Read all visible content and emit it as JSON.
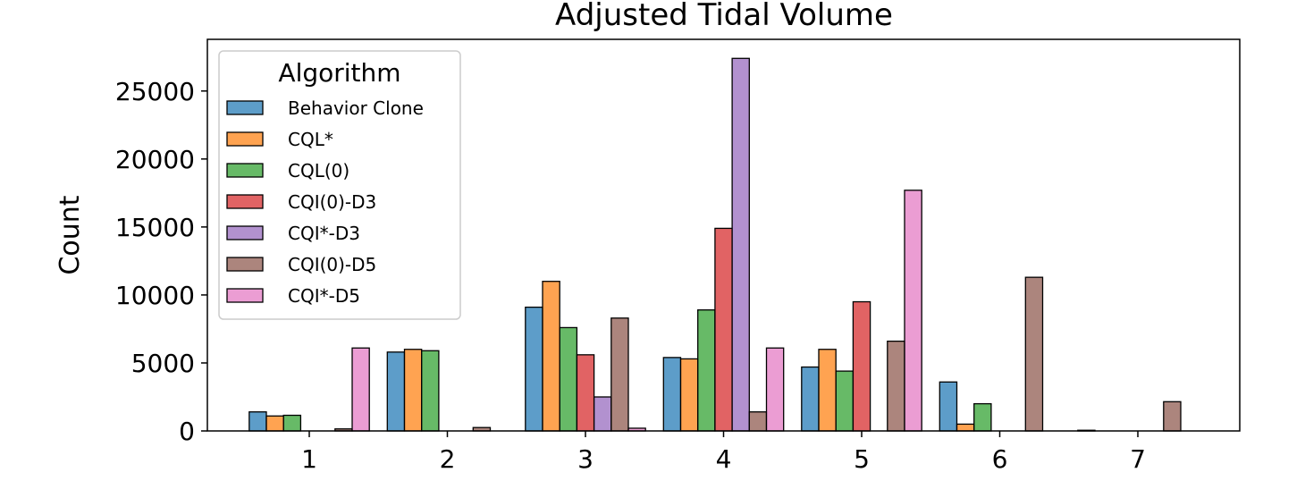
{
  "chart_data": {
    "type": "bar",
    "title": "Adjusted Tidal Volume",
    "xlabel": "",
    "ylabel": "Count",
    "categories": [
      "1",
      "2",
      "3",
      "4",
      "5",
      "6",
      "7"
    ],
    "ylim": [
      0,
      28800
    ],
    "yticks": [
      0,
      5000,
      10000,
      15000,
      20000,
      25000
    ],
    "ytick_labels": [
      "0",
      "5000",
      "10000",
      "15000",
      "20000",
      "25000"
    ],
    "grid": false,
    "legend": {
      "title": "Algorithm",
      "position": "upper-left"
    },
    "series": [
      {
        "name": "Behavior Clone",
        "color": "#1f77b4",
        "values": [
          1400,
          5800,
          9100,
          5400,
          4700,
          3600,
          50
        ]
      },
      {
        "name": "CQL*",
        "color": "#ff7f0e",
        "values": [
          1100,
          6000,
          11000,
          5300,
          6000,
          500,
          0
        ]
      },
      {
        "name": "CQL(0)",
        "color": "#2ca02c",
        "values": [
          1150,
          5900,
          7600,
          8900,
          4400,
          2000,
          0
        ]
      },
      {
        "name": "CQI(0)-D3",
        "color": "#d62728",
        "values": [
          0,
          0,
          5600,
          14900,
          9500,
          0,
          0
        ]
      },
      {
        "name": "CQI*-D3",
        "color": "#9467bd",
        "values": [
          0,
          0,
          2500,
          27400,
          0,
          0,
          0
        ]
      },
      {
        "name": "CQI(0)-D5",
        "color": "#8c564b",
        "values": [
          150,
          250,
          8300,
          1400,
          6600,
          11300,
          2150
        ]
      },
      {
        "name": "CQI*-D5",
        "color": "#e377c2",
        "values": [
          6100,
          0,
          200,
          6100,
          17700,
          0,
          0
        ]
      }
    ]
  }
}
